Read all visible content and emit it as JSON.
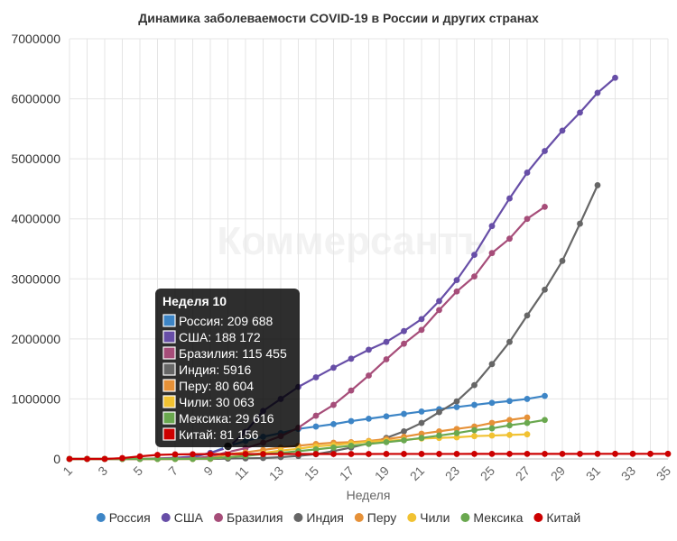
{
  "chart_data": {
    "type": "line",
    "title": "Динамика заболеваемости COVID-19 в России и других странах",
    "xlabel": "Неделя",
    "ylabel": "",
    "watermark": "Коммерсантъ",
    "ylim": [
      0,
      7000000
    ],
    "yticks": [
      "0",
      "1000000",
      "2000000",
      "3000000",
      "4000000",
      "5000000",
      "6000000",
      "7000000"
    ],
    "xlim": [
      1,
      35
    ],
    "xticks": [
      "1",
      "3",
      "5",
      "7",
      "9",
      "11",
      "13",
      "15",
      "17",
      "19",
      "21",
      "23",
      "25",
      "27",
      "29",
      "31",
      "33",
      "35"
    ],
    "grid": true,
    "legend_position": "bottom",
    "tooltip": {
      "title": "Неделя 10",
      "week": 10,
      "items": [
        {
          "series": "Россия",
          "text": "Россия: 209 688"
        },
        {
          "series": "США",
          "text": "США: 188 172"
        },
        {
          "series": "Бразилия",
          "text": "Бразилия: 115 455"
        },
        {
          "series": "Индия",
          "text": "Индия: 5916"
        },
        {
          "series": "Перу",
          "text": "Перу: 80 604"
        },
        {
          "series": "Чили",
          "text": "Чили: 30 063"
        },
        {
          "series": "Мексика",
          "text": "Мексика: 29 616"
        },
        {
          "series": "Китай",
          "text": "Китай: 81 156"
        }
      ]
    },
    "series": [
      {
        "name": "Россия",
        "color": "#3d85c6",
        "start_week": 1,
        "values": [
          0,
          0,
          0,
          100,
          500,
          1500,
          8000,
          30000,
          100000,
          209688,
          300000,
          370000,
          430000,
          500000,
          540000,
          580000,
          630000,
          670000,
          710000,
          750000,
          790000,
          830000,
          865000,
          900000,
          935000,
          965000,
          1000000,
          1050000
        ]
      },
      {
        "name": "США",
        "color": "#674ea7",
        "start_week": 1,
        "values": [
          0,
          0,
          0,
          100,
          2000,
          10000,
          20000,
          40000,
          100000,
          188172,
          450000,
          800000,
          1000000,
          1200000,
          1360000,
          1520000,
          1670000,
          1820000,
          1950000,
          2130000,
          2330000,
          2630000,
          2980000,
          3400000,
          3880000,
          4340000,
          4770000,
          5130000,
          5470000,
          5770000,
          6100000,
          6350000
        ]
      },
      {
        "name": "Бразилия",
        "color": "#a64d79",
        "start_week": 1,
        "values": [
          0,
          0,
          0,
          0,
          0,
          500,
          2000,
          10000,
          40000,
          115455,
          180000,
          270000,
          380000,
          520000,
          720000,
          900000,
          1140000,
          1390000,
          1660000,
          1920000,
          2150000,
          2480000,
          2790000,
          3040000,
          3430000,
          3670000,
          4000000,
          4200000
        ]
      },
      {
        "name": "Индия",
        "color": "#666666",
        "start_week": 1,
        "values": [
          0,
          0,
          0,
          0,
          0,
          0,
          0,
          0,
          500,
          5916,
          10000,
          15000,
          30000,
          50000,
          80000,
          130000,
          190000,
          260000,
          350000,
          460000,
          600000,
          780000,
          960000,
          1230000,
          1580000,
          1950000,
          2390000,
          2820000,
          3300000,
          3920000,
          4560000
        ]
      },
      {
        "name": "Перу",
        "color": "#e69138",
        "start_week": 1,
        "values": [
          0,
          0,
          0,
          0,
          0,
          0,
          100,
          1000,
          10000,
          80604,
          110000,
          150000,
          190000,
          220000,
          250000,
          270000,
          280000,
          300000,
          330000,
          370000,
          420000,
          460000,
          500000,
          540000,
          600000,
          650000,
          690000
        ]
      },
      {
        "name": "Чили",
        "color": "#f1c232",
        "start_week": 1,
        "values": [
          0,
          0,
          0,
          0,
          0,
          0,
          100,
          500,
          5000,
          30063,
          60000,
          100000,
          140000,
          170000,
          210000,
          230000,
          260000,
          290000,
          300000,
          320000,
          340000,
          350000,
          360000,
          380000,
          390000,
          400000,
          410000
        ]
      },
      {
        "name": "Мексика",
        "color": "#6aa84f",
        "start_week": 1,
        "values": [
          0,
          0,
          0,
          0,
          0,
          0,
          100,
          1000,
          8000,
          29616,
          50000,
          80000,
          100000,
          130000,
          160000,
          190000,
          220000,
          250000,
          280000,
          310000,
          350000,
          390000,
          430000,
          480000,
          510000,
          560000,
          600000,
          650000
        ]
      },
      {
        "name": "Китай",
        "color": "#cc0000",
        "start_week": 1,
        "values": [
          0,
          0,
          300,
          14000,
          43000,
          68000,
          76000,
          79000,
          80500,
          81156,
          81500,
          81800,
          82000,
          82200,
          82600,
          82900,
          83000,
          83000,
          83200,
          83300,
          83500,
          83600,
          83800,
          84000,
          84100,
          84300,
          84500,
          84600,
          84800,
          85000,
          85100,
          85200,
          85300,
          85400,
          85500
        ]
      }
    ]
  }
}
